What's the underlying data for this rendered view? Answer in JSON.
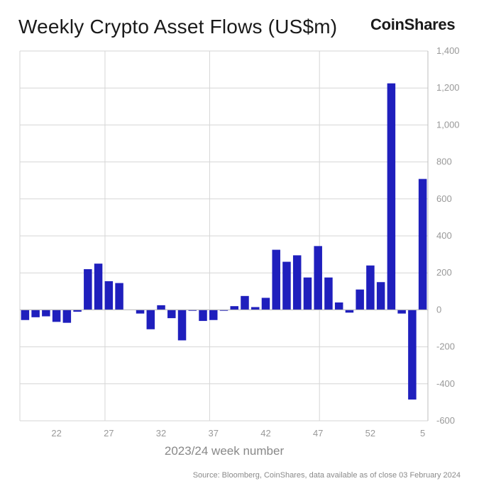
{
  "header": {
    "title": "Weekly Crypto Asset Flows (US$m)",
    "brand": "CoinShares",
    "source": "Source: Bloomberg, CoinShares, data available as of close 03 February 2024"
  },
  "chart_data": {
    "type": "bar",
    "title": "Weekly Crypto Asset Flows (US$m)",
    "xlabel": "2023/24 week number",
    "ylabel": "",
    "ylim": [
      -600,
      1400
    ],
    "yticks": [
      1400,
      1200,
      1000,
      800,
      600,
      400,
      200,
      0,
      -200,
      -400,
      -600
    ],
    "ytick_labels": [
      "1,400",
      "1,200",
      "1,000",
      "800",
      "600",
      "400",
      "200",
      "0",
      "-200",
      "-400",
      "-600"
    ],
    "xtick_labels": [
      "22",
      "27",
      "32",
      "37",
      "42",
      "47",
      "52",
      "5"
    ],
    "grid": true,
    "bar_color": "#1f1fbd",
    "categories": [
      "19",
      "20",
      "21",
      "22",
      "23",
      "24",
      "25",
      "26",
      "27",
      "28",
      "29",
      "30",
      "31",
      "32",
      "33",
      "34",
      "35",
      "36",
      "37",
      "38",
      "39",
      "40",
      "41",
      "42",
      "43",
      "44",
      "45",
      "46",
      "47",
      "48",
      "49",
      "50",
      "51",
      "52",
      "1",
      "2",
      "3",
      "4",
      "5"
    ],
    "values": [
      -55,
      -40,
      -35,
      -65,
      -70,
      -10,
      220,
      250,
      155,
      145,
      0,
      -20,
      -105,
      25,
      -45,
      -165,
      -5,
      -60,
      -55,
      -5,
      20,
      75,
      15,
      65,
      325,
      260,
      295,
      175,
      345,
      175,
      40,
      -15,
      110,
      240,
      150,
      1225,
      -20,
      -485,
      708
    ]
  }
}
